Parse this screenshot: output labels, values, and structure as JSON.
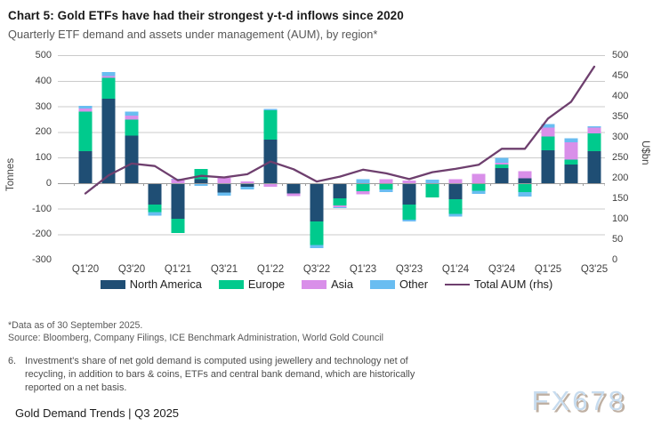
{
  "header": {
    "title": "Chart 5: Gold ETFs have had their strongest y-t-d inflows since 2020",
    "subtitle": "Quarterly ETF demand and assets under management (AUM), by region*"
  },
  "chart_data": {
    "type": "bar",
    "stacked": true,
    "grid": true,
    "legend_position": "bottom",
    "categories": [
      "Q1'20",
      "Q2'20",
      "Q3'20",
      "Q4'20",
      "Q1'21",
      "Q2'21",
      "Q3'21",
      "Q4'21",
      "Q1'22",
      "Q2'22",
      "Q3'22",
      "Q4'22",
      "Q1'23",
      "Q2'23",
      "Q3'23",
      "Q4'23",
      "Q1'24",
      "Q2'24",
      "Q3'24",
      "Q4'24",
      "Q1'25",
      "Q2'25",
      "Q3'25"
    ],
    "x_labels_shown": [
      "Q1'20",
      "Q3'20",
      "Q1'21",
      "Q3'21",
      "Q1'22",
      "Q3'22",
      "Q1'23",
      "Q3'23",
      "Q1'24",
      "Q3'24",
      "Q1'25",
      "Q3'25"
    ],
    "series": [
      {
        "name": "North America",
        "color": "#1F4E74",
        "values": [
          125,
          330,
          185,
          -84,
          -140,
          15,
          -38,
          -14,
          170,
          -40,
          -150,
          -60,
          0,
          0,
          -85,
          0,
          -63,
          0,
          58,
          18,
          128,
          73,
          124
        ]
      },
      {
        "name": "Europe",
        "color": "#00CA8D",
        "values": [
          155,
          82,
          62,
          -30,
          -55,
          40,
          0,
          0,
          115,
          0,
          -92,
          -27,
          -32,
          -26,
          -58,
          -57,
          -58,
          -30,
          14,
          -35,
          53,
          18,
          70
        ]
      },
      {
        "name": "Asia",
        "color": "#D98FE9",
        "values": [
          12,
          6,
          16,
          0,
          14,
          0,
          20,
          6,
          -15,
          -12,
          0,
          -7,
          -12,
          15,
          10,
          0,
          15,
          35,
          8,
          28,
          35,
          69,
          23
        ]
      },
      {
        "name": "Other",
        "color": "#69BDF1",
        "values": [
          10,
          16,
          16,
          -14,
          3,
          -12,
          -12,
          -12,
          5,
          0,
          -12,
          -5,
          15,
          -10,
          -8,
          13,
          -11,
          -12,
          18,
          -18,
          14,
          14,
          5
        ]
      }
    ],
    "line_series": {
      "name": "Total AUM (rhs)",
      "color": "#6E3F6E",
      "axis": "right",
      "values": [
        162,
        206,
        235,
        229,
        194,
        205,
        201,
        209,
        240,
        221,
        191,
        203,
        220,
        211,
        197,
        214,
        222,
        232,
        271,
        271,
        345,
        386,
        472
      ]
    },
    "left_axis": {
      "label": "Tonnes",
      "min": -300,
      "max": 500,
      "step": 100
    },
    "right_axis": {
      "label": "U$bn",
      "min": 0,
      "max": 500,
      "step": 50
    }
  },
  "footnotes": {
    "data_note": "*Data as of 30 September 2025.",
    "source": "Source: Bloomberg, Company Filings, ICE Benchmark Administration, World Gold Council",
    "note_number": "6.",
    "note_text": "Investment's share of net gold demand is computed using jewellery and technology net of recycling, in addition to bars & coins, ETFs and central bank demand, which are historically reported on a net basis."
  },
  "watermark": "FX678",
  "footer": {
    "label": "Gold Demand Trends | Q3 2025"
  }
}
